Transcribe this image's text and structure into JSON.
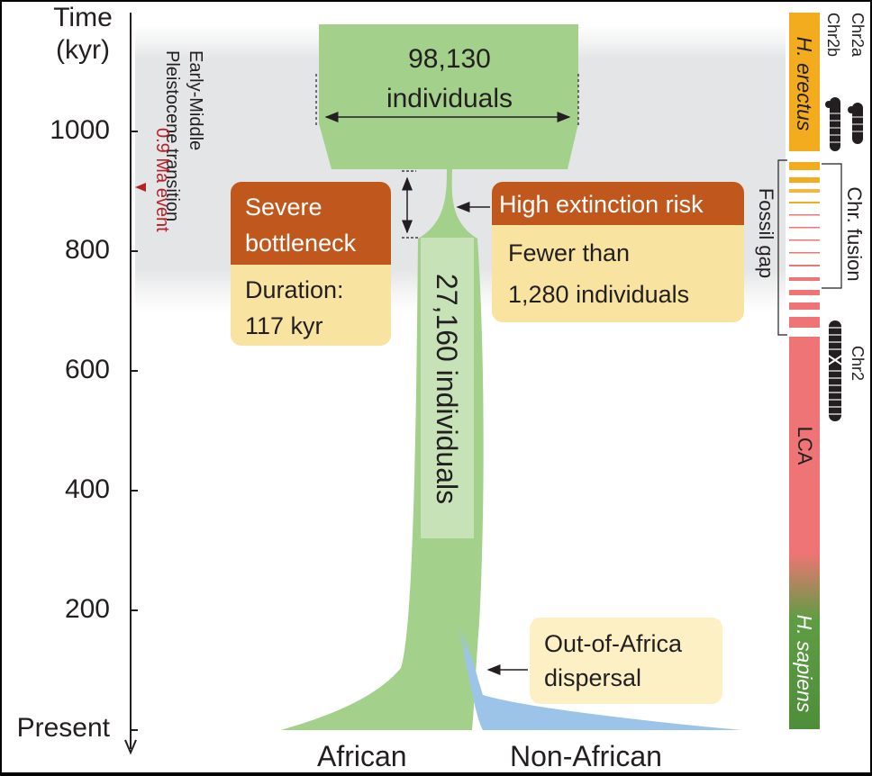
{
  "axis": {
    "title_line1": "Time",
    "title_line2": "(kyr)",
    "ticks": [
      {
        "label": "1000",
        "value": 1000
      },
      {
        "label": "800",
        "value": 800
      },
      {
        "label": "600",
        "value": 600
      },
      {
        "label": "400",
        "value": 400
      },
      {
        "label": "200",
        "value": 200
      },
      {
        "label": "Present",
        "value": 0
      }
    ]
  },
  "transition": {
    "line1": "Early-Middle",
    "line2": "Pleistocene transition"
  },
  "event": {
    "line1": "0.9 Ma event",
    "color": "#b2232a"
  },
  "ancestral": {
    "count": "98,130",
    "unit": "individuals"
  },
  "bottleneck_box": {
    "title_line1": "Severe",
    "title_line2": "bottleneck",
    "body_line1": "Duration:",
    "body_line2": "117 kyr"
  },
  "risk_box": {
    "title": "High extinction risk",
    "body_line1": "Fewer than",
    "body_line2": "1,280 individuals"
  },
  "recovered": {
    "label": "27,160 individuals"
  },
  "ooa": {
    "line1": "Out-of-Africa",
    "line2": "dispersal"
  },
  "populations": {
    "african": "African",
    "non_african": "Non-African"
  },
  "species_bar": {
    "erectus": "H. erectus",
    "lca": "LCA",
    "sapiens": "H. sapiens",
    "fossil_gap": "Fossil gap",
    "chr_fusion": "Chr. fusion",
    "chr2a": "Chr2a",
    "chr2b": "Chr2b",
    "chr2": "Chr2"
  },
  "colors": {
    "population_green": "#a3d08a",
    "non_african_blue": "#9cc4e8",
    "box_header": "#c0581e",
    "box_body": "#f8e3a1",
    "erectus": "#f3ac1e",
    "lca": "#ef7475",
    "sapiens": "#4e8e3a"
  }
}
